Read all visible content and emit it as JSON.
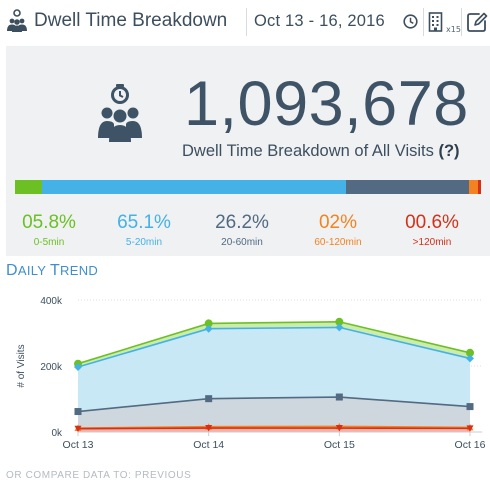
{
  "header": {
    "title": "Dwell Time Breakdown",
    "date_range": "Oct 13 - 16, 2016",
    "building_count": "x15"
  },
  "summary": {
    "total": "1,093,678",
    "subtitle": "Dwell Time Breakdown of All Visits",
    "help": "(?)"
  },
  "breakdown": [
    {
      "pct": "05.8%",
      "label": "0-5min",
      "fraction": 0.058,
      "color": "#6cc024"
    },
    {
      "pct": "65.1%",
      "label": "5-20min",
      "fraction": 0.651,
      "color": "#44b2e6"
    },
    {
      "pct": "26.2%",
      "label": "20-60min",
      "fraction": 0.262,
      "color": "#526a82"
    },
    {
      "pct": "02%",
      "label": "60-120min",
      "fraction": 0.02,
      "color": "#f58220"
    },
    {
      "pct": "00.6%",
      "label": ">120min",
      "fraction": 0.006,
      "color": "#d63019"
    }
  ],
  "trend": {
    "title_cap": "D",
    "title_rest": "aily",
    "title_cap2": "T",
    "title_rest2": "rend"
  },
  "footer": {
    "text": "Or Compare Data to: Previous"
  },
  "chart_data": {
    "type": "area",
    "categories": [
      "Oct 13",
      "Oct 14",
      "Oct 15",
      "Oct 16"
    ],
    "ylabel": "# of Visits",
    "ylim": [
      0,
      400000
    ],
    "yticks": [
      "0k",
      "200k",
      "400k"
    ],
    "ytick_values": [
      0,
      200000,
      400000
    ],
    "grid": true,
    "series": [
      {
        "band": "0-5min",
        "color": "#6cc024",
        "fill": "#c8eba6",
        "values": [
          207000,
          329000,
          334000,
          240000
        ]
      },
      {
        "band": "5-20min",
        "color": "#44b2e6",
        "fill": "#c6e8f8",
        "values": [
          197000,
          313000,
          317000,
          223000
        ]
      },
      {
        "band": "20-60min",
        "color": "#526a82",
        "fill": "#d0d6dc",
        "values": [
          62000,
          101000,
          106000,
          77000
        ]
      },
      {
        "band": "60-120min",
        "color": "#f58220",
        "fill": "#fbd0a8",
        "values": [
          12000,
          16000,
          17000,
          14000
        ]
      },
      {
        "band": ">120min",
        "color": "#d63019",
        "fill": "#f0b0a8",
        "values": [
          10000,
          12000,
          12000,
          11000
        ]
      }
    ]
  }
}
